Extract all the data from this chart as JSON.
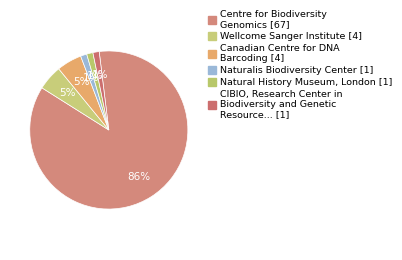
{
  "labels": [
    "Centre for Biodiversity\nGenomics [67]",
    "Wellcome Sanger Institute [4]",
    "Canadian Centre for DNA\nBarcoding [4]",
    "Naturalis Biodiversity Center [1]",
    "Natural History Museum, London [1]",
    "CIBIO, Research Center in\nBiodiversity and Genetic\nResource... [1]"
  ],
  "values": [
    67,
    4,
    4,
    1,
    1,
    1
  ],
  "colors": [
    "#d4897c",
    "#c8cd7a",
    "#e8a96a",
    "#9ab8d8",
    "#b8c86a",
    "#cc6e6e"
  ],
  "startangle": 97,
  "legend_fontsize": 6.8,
  "pct_fontsize": 7.5,
  "background_color": "#ffffff"
}
